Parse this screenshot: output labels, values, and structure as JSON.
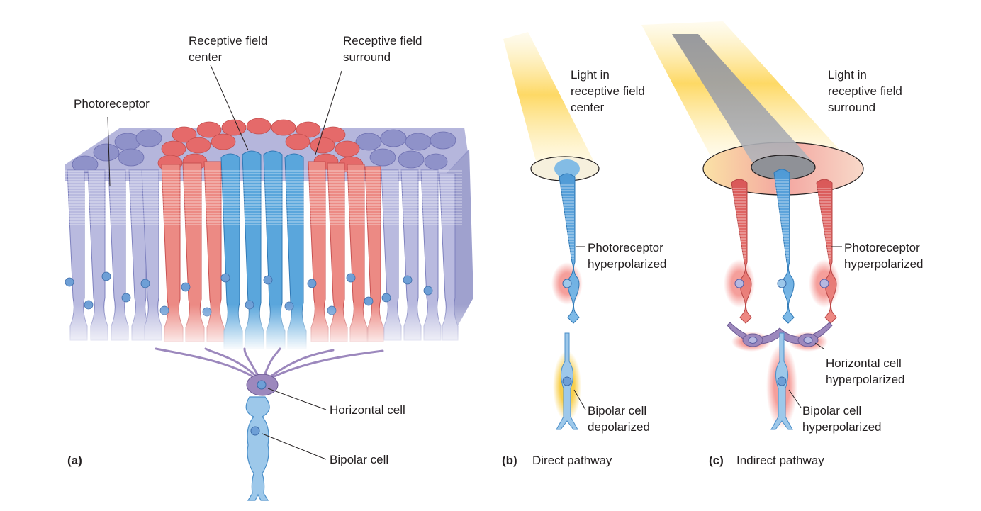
{
  "panel_a": {
    "letter": "(a)",
    "labels": {
      "photoreceptor": "Photoreceptor",
      "rf_center": "Receptive field\ncenter",
      "rf_surround": "Receptive field\nsurround",
      "horizontal_cell": "Horizontal cell",
      "bipolar_cell": "Bipolar cell"
    }
  },
  "panel_b": {
    "letter": "(b)",
    "caption": "Direct pathway",
    "labels": {
      "light": "Light in\nreceptive field\ncenter",
      "photoreceptor": "Photoreceptor\nhyperpolarized",
      "bipolar": "Bipolar cell\ndepolarized"
    }
  },
  "panel_c": {
    "letter": "(c)",
    "caption": "Indirect pathway",
    "labels": {
      "light": "Light in\nreceptive field\nsurround",
      "photoreceptor": "Photoreceptor\nhyperpolarized",
      "horizontal": "Horizontal cell\nhyperpolarized",
      "bipolar": "Bipolar cell\nhyperpolarized"
    }
  },
  "colors": {
    "center_blue": "#5aa6dc",
    "surround_red": "#e56a6a",
    "periphery_purple": "#8f92c9",
    "light_yellow": "#fdd24a",
    "shadow_gray": "#9a9ca3",
    "horizontal_purple": "#9c88bd"
  },
  "icons": {
    "photoreceptor_cell": "rod-cell-shape",
    "bipolar_cell": "bipolar-neuron-shape",
    "horizontal_cell": "horizontal-neuron-shape"
  }
}
